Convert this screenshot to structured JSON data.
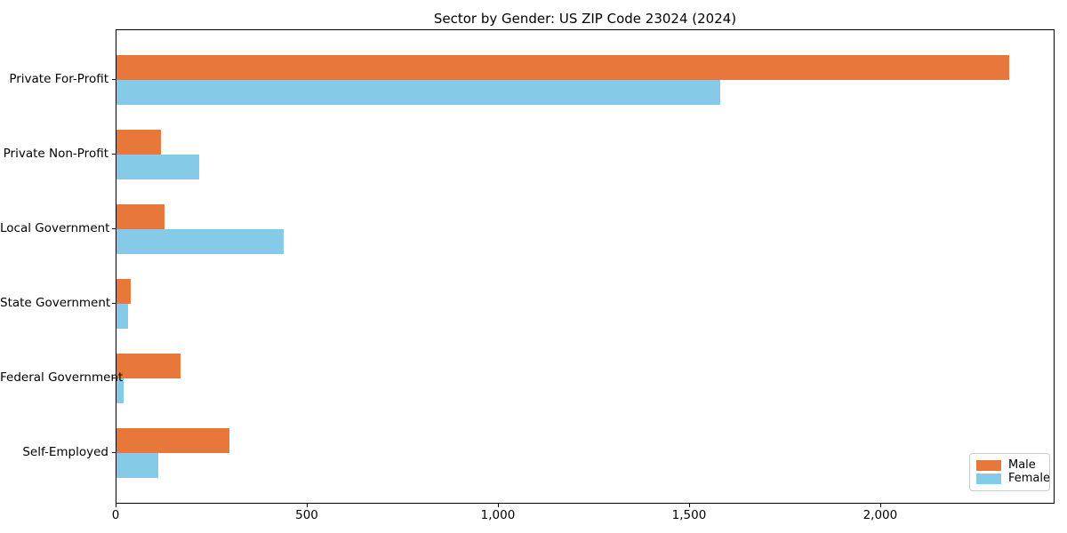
{
  "figure": {
    "background": "#ffffff",
    "spine_color": "#000000"
  },
  "chart_data": {
    "type": "bar",
    "orientation": "horizontal",
    "title": "Sector by Gender: US ZIP Code 23024 (2024)",
    "xlabel": "",
    "ylabel": "",
    "categories": [
      "Private For-Profit",
      "Private Non-Profit",
      "Local Government",
      "State Government",
      "Federal Government",
      "Self-Employed"
    ],
    "series": [
      {
        "name": "Male",
        "color": "#E8773B",
        "values": [
          2335,
          117,
          126,
          38,
          168,
          296
        ]
      },
      {
        "name": "Female",
        "color": "#85CBE8",
        "values": [
          1580,
          217,
          437,
          29,
          19,
          110
        ]
      }
    ],
    "xlim": [
      0,
      2456
    ],
    "x_ticks": [
      {
        "value": 0,
        "label": "0"
      },
      {
        "value": 500,
        "label": "500"
      },
      {
        "value": 1000,
        "label": "1,000"
      },
      {
        "value": 1500,
        "label": "1,500"
      },
      {
        "value": 2000,
        "label": "2,000"
      }
    ],
    "grid": false,
    "legend": {
      "position": "lower right",
      "entries": [
        {
          "label": "Male",
          "color": "#E8773B"
        },
        {
          "label": "Female",
          "color": "#85CBE8"
        }
      ]
    }
  }
}
